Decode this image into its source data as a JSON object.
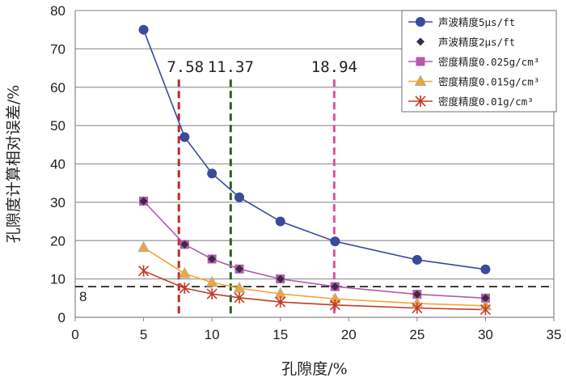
{
  "chart_data": {
    "type": "line",
    "xlabel": "孔隙度/%",
    "ylabel": "孔隙度计算相对误差/%",
    "xlim": [
      0,
      35
    ],
    "ylim": [
      0,
      80
    ],
    "xticks": [
      0,
      5,
      10,
      15,
      20,
      25,
      30,
      35
    ],
    "yticks": [
      0,
      10,
      20,
      30,
      40,
      50,
      60,
      70,
      80
    ],
    "grid": "horizontal",
    "legend_position": "top-right",
    "x": [
      5,
      8,
      10,
      12,
      15,
      19,
      25,
      30
    ],
    "series": [
      {
        "name": "声波精度5μs/ft",
        "color": "#3a4a9c",
        "marker": "circle",
        "values": [
          75,
          47,
          37.5,
          31.3,
          25,
          19.8,
          15,
          12.5
        ]
      },
      {
        "name": "声波精度2μs/ft",
        "color": "#3c2a4a",
        "marker": "diamond",
        "line": false,
        "values": [
          30.3,
          19,
          15.2,
          12.6,
          10,
          8,
          6,
          5
        ]
      },
      {
        "name": "密度精度0.025g/cm³",
        "color": "#b45aa8",
        "marker": "square",
        "values": [
          30.3,
          19,
          15.2,
          12.6,
          10,
          8,
          6,
          5
        ]
      },
      {
        "name": "密度精度0.015g/cm³",
        "color": "#f4a531",
        "marker": "triangle",
        "values": [
          18.2,
          11.4,
          9.1,
          7.6,
          6.1,
          4.8,
          3.6,
          3.0
        ]
      },
      {
        "name": "密度精度0.01g/cm³",
        "color": "#c43a26",
        "marker": "asterisk",
        "values": [
          12.1,
          7.6,
          6.1,
          5.1,
          4.0,
          3.2,
          2.4,
          2.0
        ]
      }
    ],
    "reference_lines": {
      "vertical": [
        {
          "x": 7.58,
          "label": "7.58",
          "color": "#c0282a"
        },
        {
          "x": 11.37,
          "label": "11.37",
          "color": "#2e5e22"
        },
        {
          "x": 18.94,
          "label": "18.94",
          "color": "#d8559c"
        }
      ],
      "horizontal": [
        {
          "y": 8,
          "label": "8",
          "color": "#222222"
        }
      ]
    }
  }
}
